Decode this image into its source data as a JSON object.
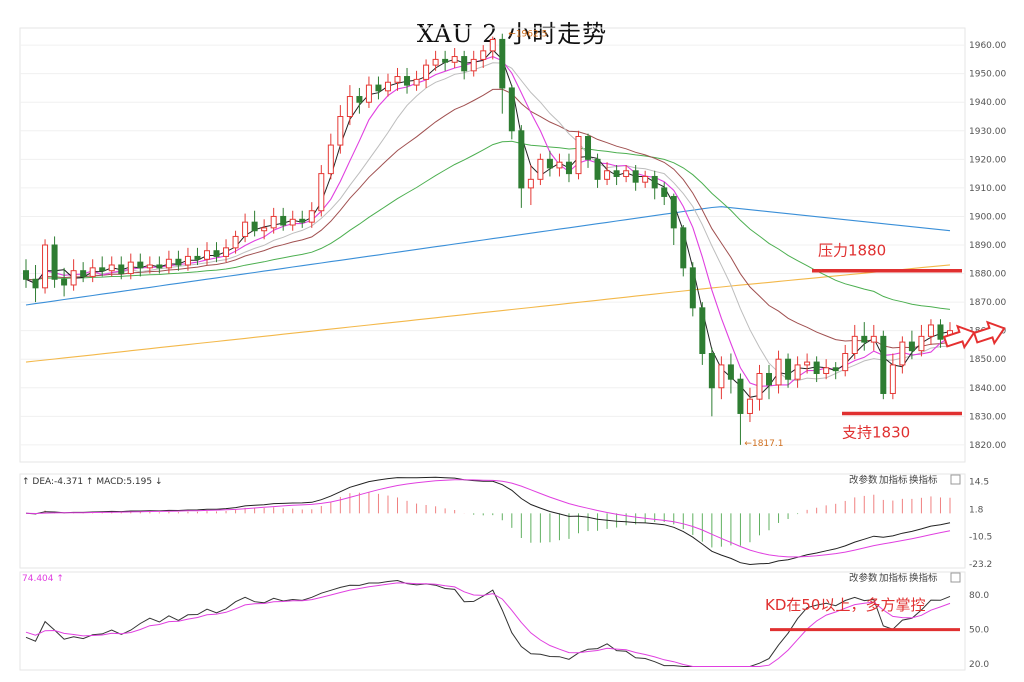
{
  "chart_data": [
    {
      "type": "candlestick",
      "title": "XAU 2 小时走势",
      "ylim": [
        1814,
        1966
      ],
      "y_ticks": [
        1960,
        1950,
        1940,
        1930,
        1920,
        1910,
        1900,
        1890,
        1880,
        1870,
        1860,
        1850,
        1840,
        1830,
        1820
      ],
      "y_tick_labels": [
        "1960.00",
        "1950.00",
        "1940.00",
        "1930.00",
        "1920.00",
        "1910.00",
        "1900.00",
        "1890.00",
        "1880.00",
        "1870.00",
        "1860.00",
        "1850.00",
        "1840.00",
        "1830.00",
        "1820.00"
      ],
      "high_label": "1962.5",
      "low_label": "1817.1",
      "candles": [
        [
          1881,
          1878,
          1885,
          1875
        ],
        [
          1878,
          1875,
          1883,
          1870
        ],
        [
          1875,
          1890,
          1892,
          1873
        ],
        [
          1890,
          1878,
          1893,
          1875
        ],
        [
          1878,
          1876,
          1882,
          1872
        ],
        [
          1876,
          1881,
          1885,
          1874
        ],
        [
          1881,
          1879,
          1884,
          1877
        ],
        [
          1879,
          1882,
          1885,
          1877
        ],
        [
          1882,
          1881,
          1886,
          1879
        ],
        [
          1881,
          1883,
          1886,
          1879
        ],
        [
          1883,
          1880,
          1886,
          1878
        ],
        [
          1880,
          1884,
          1887,
          1878
        ],
        [
          1884,
          1882,
          1887,
          1879
        ],
        [
          1882,
          1883,
          1886,
          1880
        ],
        [
          1883,
          1882,
          1886,
          1880
        ],
        [
          1882,
          1885,
          1888,
          1880
        ],
        [
          1885,
          1883,
          1888,
          1881
        ],
        [
          1883,
          1886,
          1889,
          1881
        ],
        [
          1886,
          1885,
          1889,
          1883
        ],
        [
          1885,
          1888,
          1891,
          1883
        ],
        [
          1888,
          1886,
          1891,
          1884
        ],
        [
          1886,
          1889,
          1892,
          1884
        ],
        [
          1889,
          1893,
          1895,
          1887
        ],
        [
          1893,
          1898,
          1901,
          1891
        ],
        [
          1898,
          1895,
          1902,
          1893
        ],
        [
          1895,
          1896,
          1899,
          1892
        ],
        [
          1896,
          1900,
          1903,
          1894
        ],
        [
          1900,
          1897,
          1903,
          1895
        ],
        [
          1897,
          1899,
          1902,
          1895
        ],
        [
          1899,
          1898,
          1902,
          1896
        ],
        [
          1898,
          1902,
          1905,
          1896
        ],
        [
          1902,
          1915,
          1918,
          1900
        ],
        [
          1915,
          1925,
          1929,
          1913
        ],
        [
          1925,
          1935,
          1939,
          1922
        ],
        [
          1935,
          1942,
          1946,
          1932
        ],
        [
          1942,
          1940,
          1945,
          1936
        ],
        [
          1940,
          1946,
          1949,
          1938
        ],
        [
          1946,
          1944,
          1949,
          1941
        ],
        [
          1944,
          1947,
          1950,
          1942
        ],
        [
          1947,
          1949,
          1952,
          1944
        ],
        [
          1949,
          1946,
          1952,
          1943
        ],
        [
          1946,
          1948,
          1951,
          1944
        ],
        [
          1948,
          1953,
          1955,
          1945
        ],
        [
          1953,
          1955,
          1958,
          1951
        ],
        [
          1955,
          1954,
          1958,
          1951
        ],
        [
          1954,
          1956,
          1959,
          1952
        ],
        [
          1956,
          1951,
          1958,
          1948
        ],
        [
          1951,
          1955,
          1958,
          1949
        ],
        [
          1955,
          1958,
          1960,
          1952
        ],
        [
          1958,
          1962,
          1963,
          1955
        ],
        [
          1962,
          1945,
          1964,
          1936
        ],
        [
          1945,
          1930,
          1946,
          1927
        ],
        [
          1930,
          1910,
          1932,
          1903
        ],
        [
          1910,
          1913,
          1918,
          1904
        ],
        [
          1913,
          1920,
          1922,
          1911
        ],
        [
          1920,
          1917,
          1923,
          1914
        ],
        [
          1917,
          1919,
          1922,
          1914
        ],
        [
          1919,
          1915,
          1922,
          1912
        ],
        [
          1915,
          1928,
          1930,
          1913
        ],
        [
          1928,
          1920,
          1929,
          1917
        ],
        [
          1920,
          1913,
          1922,
          1910
        ],
        [
          1913,
          1916,
          1919,
          1911
        ],
        [
          1916,
          1914,
          1918,
          1911
        ],
        [
          1914,
          1916,
          1918,
          1912
        ],
        [
          1916,
          1912,
          1918,
          1909
        ],
        [
          1912,
          1914,
          1916,
          1910
        ],
        [
          1914,
          1910,
          1916,
          1906
        ],
        [
          1910,
          1907,
          1912,
          1904
        ],
        [
          1907,
          1896,
          1908,
          1890
        ],
        [
          1896,
          1882,
          1897,
          1879
        ],
        [
          1882,
          1868,
          1884,
          1865
        ],
        [
          1868,
          1852,
          1870,
          1848
        ],
        [
          1852,
          1840,
          1854,
          1830
        ],
        [
          1840,
          1848,
          1851,
          1836
        ],
        [
          1848,
          1843,
          1852,
          1838
        ],
        [
          1843,
          1831,
          1845,
          1820
        ],
        [
          1831,
          1836,
          1840,
          1828
        ],
        [
          1836,
          1845,
          1848,
          1832
        ],
        [
          1845,
          1841,
          1848,
          1836
        ],
        [
          1841,
          1850,
          1853,
          1838
        ],
        [
          1850,
          1843,
          1852,
          1840
        ],
        [
          1843,
          1848,
          1851,
          1840
        ],
        [
          1848,
          1849,
          1852,
          1845
        ],
        [
          1849,
          1845,
          1851,
          1842
        ],
        [
          1845,
          1847,
          1850,
          1843
        ],
        [
          1847,
          1846,
          1849,
          1843
        ],
        [
          1846,
          1852,
          1855,
          1844
        ],
        [
          1852,
          1858,
          1862,
          1850
        ],
        [
          1858,
          1856,
          1863,
          1853
        ],
        [
          1856,
          1858,
          1862,
          1853
        ],
        [
          1858,
          1838,
          1860,
          1836
        ],
        [
          1838,
          1848,
          1852,
          1836
        ],
        [
          1848,
          1856,
          1858,
          1845
        ],
        [
          1856,
          1853,
          1860,
          1850
        ],
        [
          1853,
          1858,
          1862,
          1851
        ],
        [
          1858,
          1862,
          1864,
          1855
        ],
        [
          1862,
          1857,
          1864,
          1854
        ],
        [
          1857,
          1860,
          1863,
          1855
        ]
      ],
      "support_label": "支持1830",
      "support_value": 1831,
      "resistance_label": "压力1880",
      "resistance_value": 1881
    },
    {
      "type": "macd",
      "legend_prefix": "DEA:",
      "dea_value": "-4.371",
      "macd_label": "MACD:5.195",
      "ylim": [
        -25,
        18
      ],
      "y_ticks": [
        14.5,
        1.8,
        -10.5,
        -23.2
      ],
      "y_tick_labels": [
        "14.5",
        "1.8",
        "-10.5",
        "-23.2"
      ],
      "controls": [
        "改参数",
        "加指标",
        "换指标"
      ]
    },
    {
      "type": "kd",
      "k_value": "74.404",
      "ylim": [
        15,
        100
      ],
      "y_ticks": [
        80,
        50,
        20
      ],
      "y_tick_labels": [
        "80.0",
        "50.0",
        "20.0"
      ],
      "annotation": "KD在50以上，多方掌控",
      "annotation_level": 50,
      "controls": [
        "改参数",
        "加指标",
        "换指标"
      ]
    }
  ],
  "colors": {
    "up": "#e53935",
    "down": "#2e7d32",
    "ma5": "#222222",
    "ma10": "#e040e0",
    "ma20": "#bdbdbd",
    "ma30": "#a05050",
    "ma60": "#4caf50",
    "ma120": "#3a8fd8",
    "ma250": "#f3b84a",
    "annotation": "#e03030"
  }
}
